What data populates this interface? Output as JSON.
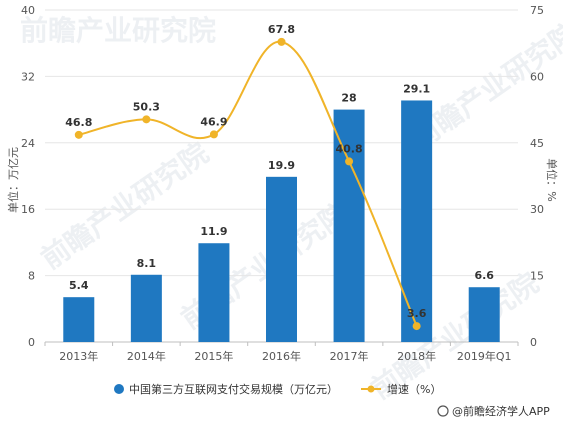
{
  "chart_data": {
    "type": "bar",
    "categories": [
      "2013年",
      "2014年",
      "2015年",
      "2016年",
      "2017年",
      "2018年",
      "2019年Q1"
    ],
    "series": [
      {
        "name": "中国第三方互联网支付交易规模（万亿元）",
        "type": "bar",
        "axis": "left",
        "color": "#1f78c1",
        "values": [
          5.4,
          8.1,
          11.9,
          19.9,
          28,
          29.1,
          6.6
        ]
      },
      {
        "name": "增速（%）",
        "type": "line",
        "axis": "right",
        "color": "#f0b429",
        "values": [
          46.8,
          50.3,
          46.9,
          67.8,
          40.8,
          3.6,
          null
        ]
      }
    ],
    "ylabel_left": "单位：万亿元",
    "ylabel_right": "单位：%",
    "ylim_left": [
      0,
      40
    ],
    "yticks_left": [
      0,
      8,
      16,
      24,
      32,
      40
    ],
    "ylim_right": [
      0,
      75
    ],
    "yticks_right": [
      0,
      15,
      30,
      45,
      60,
      75
    ],
    "grid": true,
    "legend_position": "bottom"
  },
  "watermark": "前瞻产业研究院",
  "source_text": "@前瞻经济学人APP"
}
